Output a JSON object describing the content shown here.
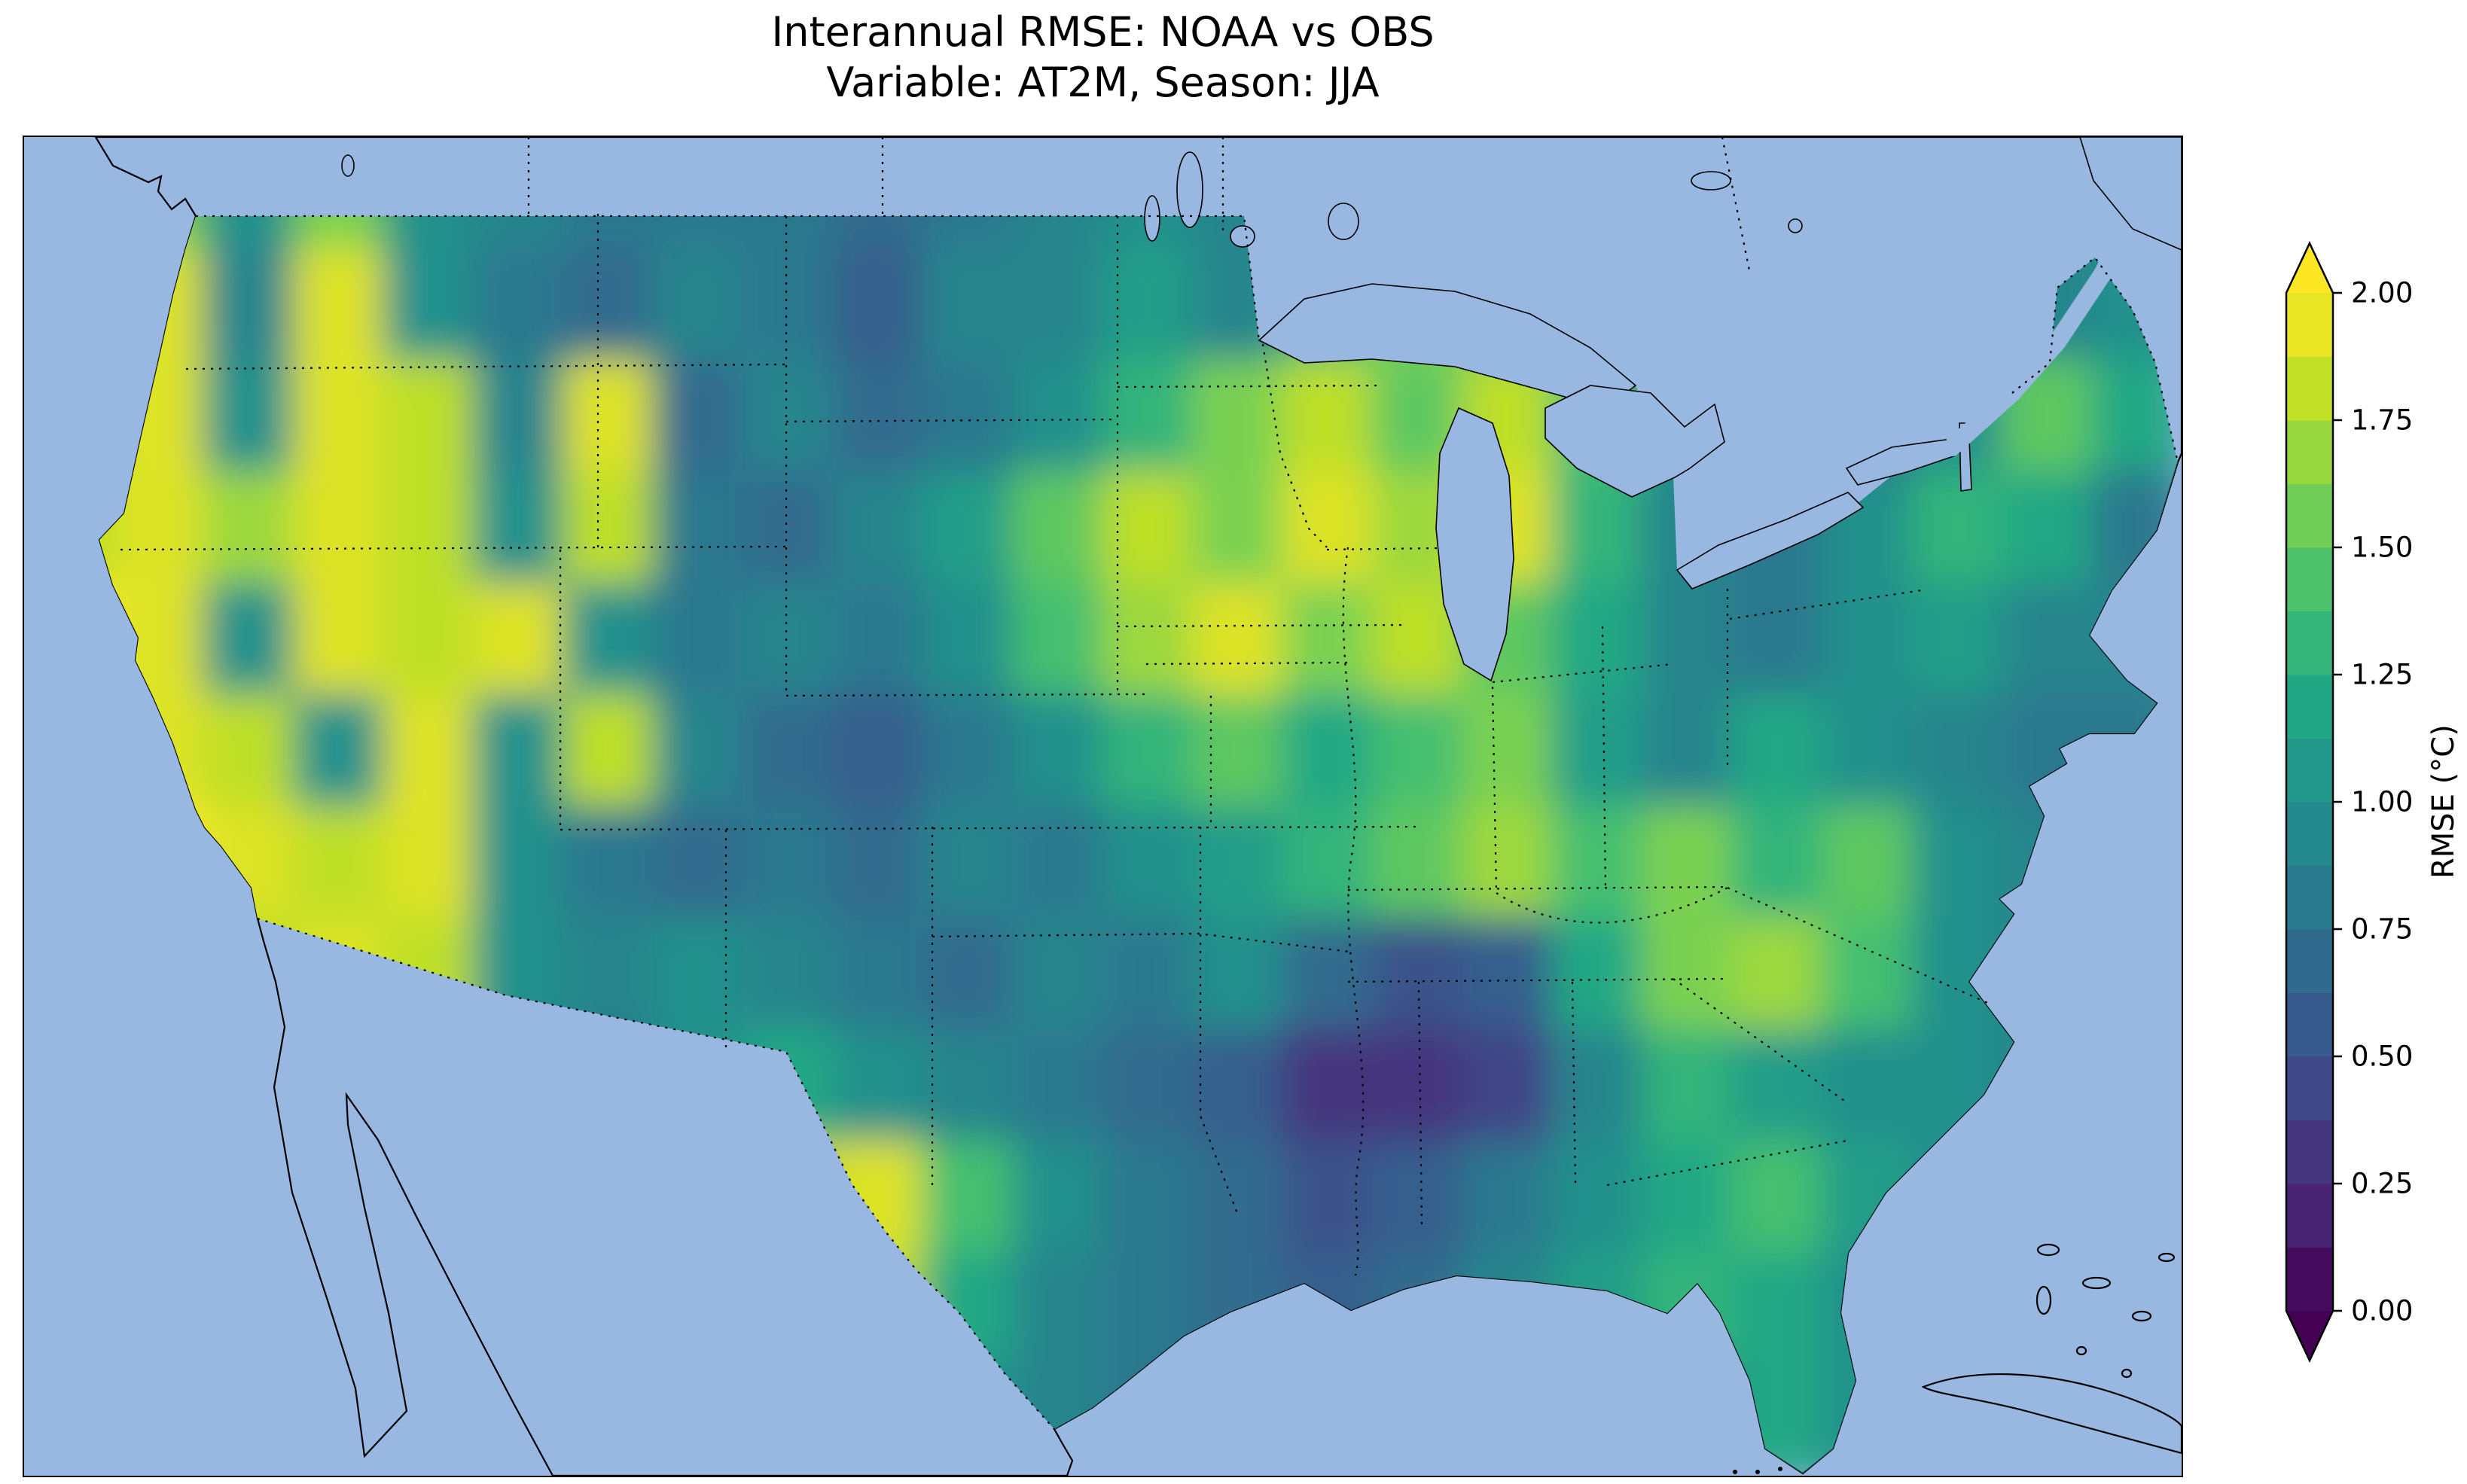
{
  "figure": {
    "title_line1": "Interannual RMSE: NOAA vs OBS",
    "title_line2": "Variable: AT2M, Season: JJA"
  },
  "chart_data": {
    "type": "heatmap",
    "title": "Interannual RMSE: NOAA vs OBS",
    "subtitle": "Variable: AT2M, Season: JJA",
    "comparison": "NOAA vs OBS",
    "variable": "AT2M",
    "season": "JJA",
    "region": "Continental United States",
    "colorbar": {
      "label": "RMSE (°C)",
      "ticks": [
        "0.00",
        "0.25",
        "0.50",
        "0.75",
        "1.00",
        "1.25",
        "1.50",
        "1.75",
        "2.00"
      ],
      "vmin": 0,
      "vmax": 2,
      "levels": 16,
      "extend": "both"
    },
    "colormap": {
      "name": "viridis",
      "stops": [
        "#440154",
        "#482475",
        "#414487",
        "#355f8d",
        "#2a788e",
        "#21918c",
        "#22a884",
        "#44bf70",
        "#7ad151",
        "#bddf26",
        "#fde725"
      ]
    },
    "map_colors": {
      "ocean": "#98b7e1",
      "land": "#efefdb",
      "coastline": "#000000"
    },
    "grid": {
      "units": "°C",
      "cols": 24,
      "rows": 12,
      "values": [
        [
          1.0,
          1.6,
          1.0,
          1.6,
          1.0,
          0.9,
          0.8,
          0.8,
          0.8,
          0.7,
          0.8,
          0.9,
          1.0,
          0.9,
          1.0,
          1.2,
          1.0,
          1.2,
          1.0,
          0.8,
          0.8,
          0.9,
          1.0,
          0.9
        ],
        [
          1.8,
          1.9,
          0.9,
          1.9,
          1.0,
          0.8,
          0.7,
          0.9,
          0.8,
          0.6,
          0.9,
          0.9,
          1.1,
          0.9,
          1.3,
          1.6,
          1.5,
          1.7,
          1.2,
          0.9,
          0.7,
          1.0,
          0.9,
          1.0
        ],
        [
          1.9,
          1.9,
          1.0,
          1.9,
          1.8,
          0.9,
          1.9,
          0.7,
          0.9,
          0.7,
          0.8,
          1.0,
          1.3,
          1.6,
          1.8,
          1.5,
          1.8,
          1.4,
          1.0,
          1.0,
          0.7,
          1.0,
          1.5,
          1.2
        ],
        [
          1.8,
          1.9,
          1.7,
          1.9,
          1.8,
          1.0,
          1.8,
          0.8,
          0.7,
          0.9,
          1.1,
          1.5,
          1.8,
          1.6,
          1.9,
          1.7,
          1.9,
          1.3,
          0.9,
          0.8,
          1.0,
          1.3,
          1.2,
          0.8
        ],
        [
          2.0,
          1.9,
          1.0,
          1.9,
          1.8,
          1.9,
          1.0,
          0.8,
          0.9,
          0.8,
          1.0,
          1.4,
          1.7,
          1.9,
          1.6,
          1.8,
          1.5,
          1.2,
          0.9,
          0.8,
          1.0,
          1.1,
          0.9,
          0.9
        ],
        [
          2.0,
          1.9,
          1.8,
          1.0,
          1.9,
          1.0,
          1.8,
          0.9,
          0.7,
          0.6,
          0.8,
          1.0,
          1.3,
          1.5,
          1.2,
          1.4,
          1.6,
          1.1,
          0.9,
          1.2,
          1.0,
          0.9,
          0.8,
          0.8
        ],
        [
          1.9,
          2.0,
          1.9,
          1.8,
          1.9,
          1.0,
          0.8,
          0.7,
          0.8,
          0.7,
          0.9,
          0.8,
          1.0,
          1.1,
          1.3,
          1.5,
          1.7,
          1.4,
          1.6,
          1.3,
          1.5,
          1.0,
          0.9,
          0.9
        ],
        [
          1.8,
          1.9,
          1.8,
          1.9,
          1.8,
          1.0,
          0.9,
          1.0,
          0.9,
          0.8,
          0.7,
          0.9,
          0.8,
          1.0,
          0.7,
          0.5,
          0.6,
          1.2,
          1.6,
          1.7,
          1.4,
          1.0,
          0.9,
          0.9
        ],
        [
          1.7,
          1.8,
          1.9,
          1.8,
          1.0,
          0.9,
          0.8,
          1.0,
          1.2,
          1.0,
          0.9,
          0.8,
          0.7,
          0.6,
          0.3,
          0.3,
          0.4,
          0.9,
          1.3,
          1.1,
          1.0,
          1.0,
          0.9,
          0.9
        ],
        [
          1.6,
          1.7,
          1.8,
          1.7,
          1.0,
          1.0,
          1.2,
          1.5,
          1.8,
          1.9,
          1.4,
          1.0,
          0.8,
          0.7,
          0.5,
          0.6,
          0.8,
          1.0,
          1.2,
          1.4,
          1.1,
          1.0,
          0.9,
          0.9
        ],
        [
          1.5,
          1.6,
          1.6,
          1.5,
          1.1,
          1.0,
          1.3,
          1.6,
          2.0,
          1.8,
          1.2,
          0.9,
          0.8,
          0.7,
          0.6,
          0.7,
          0.9,
          1.1,
          1.3,
          1.2,
          1.0,
          0.9,
          0.9,
          0.9
        ],
        [
          1.4,
          1.5,
          1.5,
          1.4,
          1.1,
          1.0,
          1.2,
          1.4,
          1.7,
          1.4,
          1.0,
          0.9,
          0.8,
          0.8,
          0.7,
          0.8,
          0.9,
          1.0,
          0.8,
          1.2,
          1.0,
          0.9,
          0.9,
          0.9
        ]
      ]
    }
  }
}
